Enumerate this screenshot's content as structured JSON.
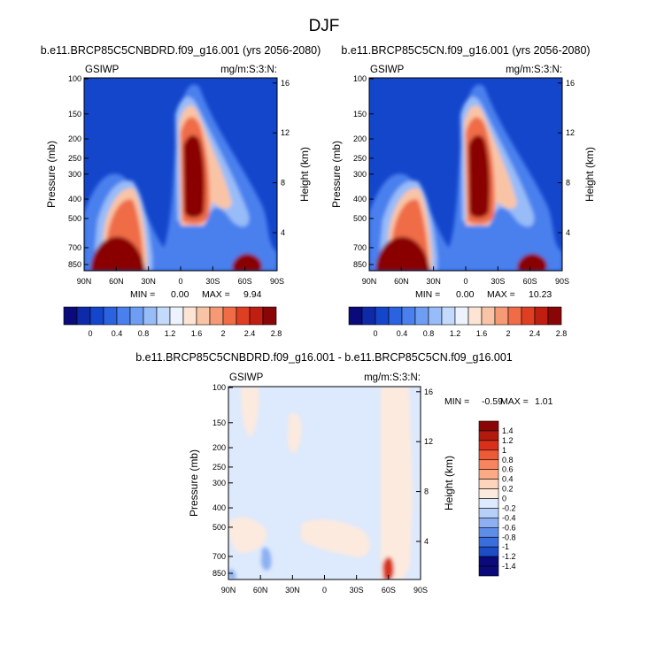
{
  "figure_title": "DJF",
  "chart_data": [
    {
      "type": "heatmap",
      "id": "p1",
      "title": "b.e11.BRCP85C5CNBDRD.f09_g16.001 (yrs 2056-2080)",
      "left_label": "GSIWP",
      "right_label": "mg/m:S:3:N:",
      "xlabel": "",
      "ylabel": "Pressure (mb)",
      "ylabel_right": "Height (km)",
      "x_ticks": [
        "90N",
        "60N",
        "30N",
        "0",
        "30S",
        "60S",
        "90S"
      ],
      "y_ticks": [
        "100",
        "150",
        "200",
        "250",
        "300",
        "400",
        "500",
        "700",
        "850"
      ],
      "height_ticks": [
        "4",
        "8",
        "12",
        "16"
      ],
      "stats": {
        "min_label": "MIN =",
        "min": "0.00",
        "max_label": "MAX =",
        "max": "9.94"
      },
      "colorbar": {
        "orientation": "horizontal",
        "labels": [
          "0",
          "0.4",
          "0.8",
          "1.2",
          "1.6",
          "2",
          "2.4",
          "2.8"
        ]
      }
    },
    {
      "type": "heatmap",
      "id": "p2",
      "title": "b.e11.BRCP85C5CN.f09_g16.001 (yrs 2056-2080)",
      "left_label": "GSIWP",
      "right_label": "mg/m:S:3:N:",
      "xlabel": "",
      "ylabel": "Pressure (mb)",
      "ylabel_right": "Height (km)",
      "x_ticks": [
        "90N",
        "60N",
        "30N",
        "0",
        "30S",
        "60S",
        "90S"
      ],
      "y_ticks": [
        "100",
        "150",
        "200",
        "250",
        "300",
        "400",
        "500",
        "700",
        "850"
      ],
      "height_ticks": [
        "4",
        "8",
        "12",
        "16"
      ],
      "stats": {
        "min_label": "MIN =",
        "min": "0.00",
        "max_label": "MAX =",
        "max": "10.23"
      },
      "colorbar": {
        "orientation": "horizontal",
        "labels": [
          "0",
          "0.4",
          "0.8",
          "1.2",
          "1.6",
          "2",
          "2.4",
          "2.8"
        ]
      }
    },
    {
      "type": "heatmap",
      "id": "p3",
      "title": "b.e11.BRCP85C5CNBDRD.f09_g16.001 - b.e11.BRCP85C5CN.f09_g16.001",
      "left_label": "GSIWP",
      "right_label": "mg/m:S:3:N:",
      "xlabel": "",
      "ylabel": "Pressure (mb)",
      "ylabel_right": "Height (km)",
      "x_ticks": [
        "90N",
        "60N",
        "30N",
        "0",
        "30S",
        "60S",
        "90S"
      ],
      "y_ticks": [
        "100",
        "150",
        "200",
        "250",
        "300",
        "400",
        "500",
        "700",
        "850"
      ],
      "height_ticks": [
        "4",
        "8",
        "12",
        "16"
      ],
      "stats": {
        "min_label": "MIN =",
        "min": "-0.59",
        "max_label": "MAX =",
        "max": "1.01"
      },
      "colorbar": {
        "orientation": "vertical",
        "labels": [
          "1.4",
          "1.2",
          "1",
          "0.8",
          "0.6",
          "0.4",
          "0.2",
          "0",
          "-0.2",
          "-0.4",
          "-0.6",
          "-0.8",
          "-1",
          "-1.2",
          "-1.4"
        ]
      }
    }
  ],
  "colors": {
    "blue_red_16": [
      "#0a0a7a",
      "#0e2aa8",
      "#1446cc",
      "#2a62e0",
      "#4a80ee",
      "#6e9ef4",
      "#98bcf8",
      "#c4dafc",
      "#ecf2fe",
      "#fde4d4",
      "#f9c4a6",
      "#f59a74",
      "#ef6c46",
      "#de3e22",
      "#bf1e10",
      "#8a0606"
    ],
    "diff_ramp": [
      "#8a0606",
      "#b31a0e",
      "#d8301a",
      "#ee5a36",
      "#f7845e",
      "#fbaa86",
      "#fdd4bc",
      "#fdeade",
      "#dde9fc",
      "#b8cff7",
      "#8cb0f2",
      "#5f8ee9",
      "#3a6edc",
      "#1c4dc6",
      "#0a0a7a"
    ]
  }
}
